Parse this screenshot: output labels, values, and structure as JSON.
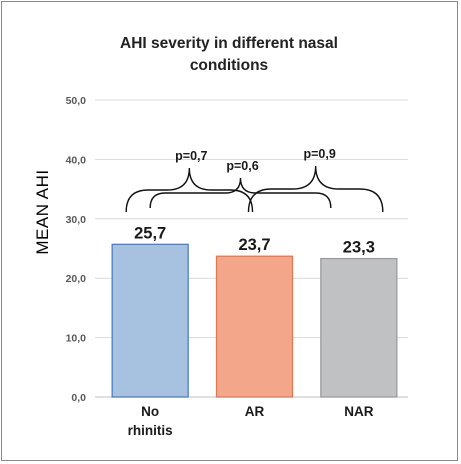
{
  "chart_data": {
    "type": "bar",
    "title_lines": [
      "AHI severity in different nasal",
      "conditions"
    ],
    "ylabel": "MEAN AHI",
    "xlabel": "",
    "categories": [
      [
        "No",
        "rhinitis"
      ],
      [
        "AR"
      ],
      [
        "NAR"
      ]
    ],
    "values": [
      25.7,
      23.7,
      23.3
    ],
    "data_labels": [
      "25,7",
      "23,7",
      "23,3"
    ],
    "ylim": [
      0,
      50
    ],
    "y_ticks": [
      0,
      10,
      20,
      30,
      40,
      50
    ],
    "y_tick_labels": [
      "0,0",
      "10,0",
      "20,0",
      "30,0",
      "40,0",
      "50,0"
    ],
    "grid": true,
    "bar_colors": [
      {
        "fill": "#a7c1e1",
        "stroke": "#4f7ec0"
      },
      {
        "fill": "#f3a68a",
        "stroke": "#e07a55"
      },
      {
        "fill": "#c0c1c3",
        "stroke": "#9a9b9d"
      }
    ],
    "comparisons": [
      {
        "label": "p=0,7",
        "from": 0,
        "to": 1
      },
      {
        "label": "p=0,6",
        "from": 0,
        "to": 2
      },
      {
        "label": "p=0,9",
        "from": 1,
        "to": 2
      }
    ]
  }
}
